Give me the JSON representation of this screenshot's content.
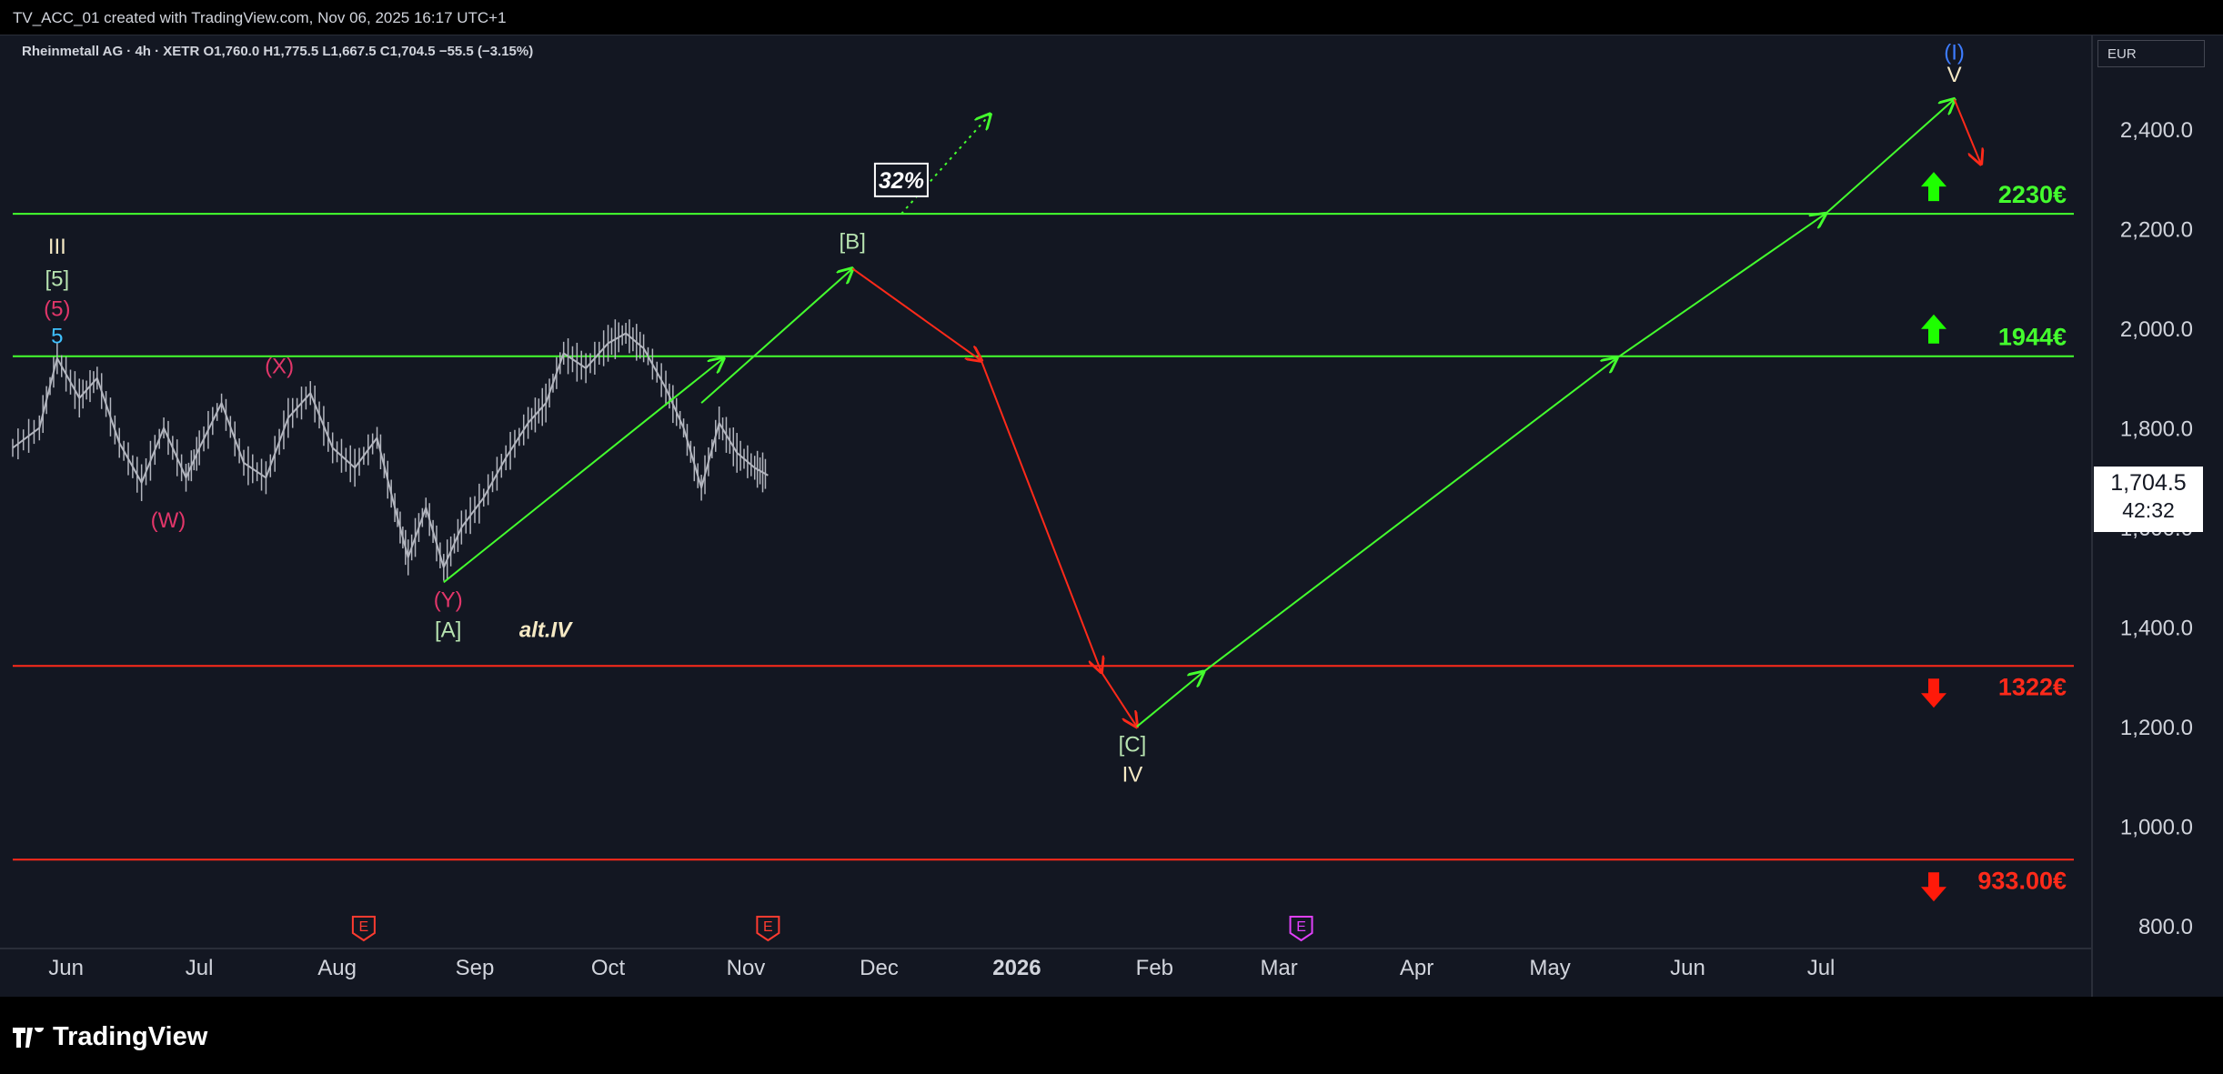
{
  "header": {
    "watermark": "TV_ACC_01 created with TradingView.com, Nov 06, 2025 16:17 UTC+1"
  },
  "symbol_bar": {
    "text": "Rheinmetall AG · 4h · XETR  O1,760.0  H1,775.5  L1,667.5  C1,704.5  −55.5 (−3.15%)"
  },
  "currency": "EUR",
  "last_price": {
    "price": "1,704.5",
    "countdown": "42:32"
  },
  "footer": {
    "brand": "TradingView"
  },
  "colors": {
    "background": "#131722",
    "green": "#44ff2e",
    "red": "#ff2a1a",
    "candle": "#b2b5be"
  },
  "chart_data": {
    "type": "line",
    "title": "",
    "y_ticks": [
      800,
      1000,
      1200,
      1400,
      1600,
      1800,
      2000,
      2200,
      2400
    ],
    "y_tick_labels": [
      "800.0",
      "1,000.0",
      "1,200.0",
      "1,400.0",
      "1,600.0",
      "1,800.0",
      "2,000.0",
      "2,200.0",
      "2,400.0"
    ],
    "x_ticks": [
      "Jun",
      "Jul",
      "Aug",
      "Sep",
      "Oct",
      "Nov",
      "Dec",
      "2026",
      "Feb",
      "Mar",
      "Apr",
      "May",
      "Jun",
      "Jul"
    ],
    "ylim": [
      760,
      2590
    ],
    "price_path": [
      {
        "d": "2025-05-20",
        "v": 1760
      },
      {
        "d": "2025-05-26",
        "v": 1800
      },
      {
        "d": "2025-05-30",
        "v": 1940
      },
      {
        "d": "2025-06-04",
        "v": 1860
      },
      {
        "d": "2025-06-08",
        "v": 1900
      },
      {
        "d": "2025-06-13",
        "v": 1770
      },
      {
        "d": "2025-06-18",
        "v": 1690
      },
      {
        "d": "2025-06-23",
        "v": 1800
      },
      {
        "d": "2025-06-28",
        "v": 1700
      },
      {
        "d": "2025-07-01",
        "v": 1760
      },
      {
        "d": "2025-07-06",
        "v": 1850
      },
      {
        "d": "2025-07-11",
        "v": 1730
      },
      {
        "d": "2025-07-16",
        "v": 1700
      },
      {
        "d": "2025-07-21",
        "v": 1820
      },
      {
        "d": "2025-07-26",
        "v": 1870
      },
      {
        "d": "2025-07-31",
        "v": 1760
      },
      {
        "d": "2025-08-05",
        "v": 1720
      },
      {
        "d": "2025-08-10",
        "v": 1780
      },
      {
        "d": "2025-08-14",
        "v": 1640
      },
      {
        "d": "2025-08-17",
        "v": 1540
      },
      {
        "d": "2025-08-21",
        "v": 1640
      },
      {
        "d": "2025-08-25",
        "v": 1520
      },
      {
        "d": "2025-08-29",
        "v": 1600
      },
      {
        "d": "2025-09-03",
        "v": 1660
      },
      {
        "d": "2025-09-08",
        "v": 1740
      },
      {
        "d": "2025-09-13",
        "v": 1810
      },
      {
        "d": "2025-09-17",
        "v": 1850
      },
      {
        "d": "2025-09-21",
        "v": 1950
      },
      {
        "d": "2025-09-26",
        "v": 1920
      },
      {
        "d": "2025-10-01",
        "v": 1970
      },
      {
        "d": "2025-10-05",
        "v": 1990
      },
      {
        "d": "2025-10-09",
        "v": 1960
      },
      {
        "d": "2025-10-14",
        "v": 1880
      },
      {
        "d": "2025-10-18",
        "v": 1800
      },
      {
        "d": "2025-10-22",
        "v": 1680
      },
      {
        "d": "2025-10-26",
        "v": 1810
      },
      {
        "d": "2025-10-30",
        "v": 1750
      },
      {
        "d": "2025-11-03",
        "v": 1720
      },
      {
        "d": "2025-11-06",
        "v": 1704.5
      }
    ],
    "levels": [
      {
        "value": 2230,
        "label": "2230€",
        "color": "#44ff2e",
        "arrow": "up"
      },
      {
        "value": 1944,
        "label": "1944€",
        "color": "#44ff2e",
        "arrow": "up"
      },
      {
        "value": 1322,
        "label": "1322€",
        "color": "#ff2a1a",
        "arrow": "down"
      },
      {
        "value": 933,
        "label": "933.00€",
        "color": "#ff2a1a",
        "arrow": "down"
      }
    ],
    "projection_arrows": [
      {
        "from": {
          "d": "2025-08-25",
          "v": 1490
        },
        "to": {
          "d": "2025-10-27",
          "v": 1940
        },
        "color": "#44ff2e",
        "dashed": false
      },
      {
        "from": {
          "d": "2025-10-22",
          "v": 1850
        },
        "to": {
          "d": "2025-11-25",
          "v": 2120
        },
        "color": "#44ff2e",
        "dashed": false
      },
      {
        "from": {
          "d": "2025-11-25",
          "v": 2120
        },
        "to": {
          "d": "2025-12-24",
          "v": 1935
        },
        "color": "#ff2a1a",
        "dashed": false
      },
      {
        "from": {
          "d": "2025-12-24",
          "v": 1935
        },
        "to": {
          "d": "2026-01-20",
          "v": 1310
        },
        "color": "#ff2a1a",
        "dashed": false
      },
      {
        "from": {
          "d": "2026-01-20",
          "v": 1310
        },
        "to": {
          "d": "2026-01-28",
          "v": 1200
        },
        "color": "#ff2a1a",
        "dashed": false
      },
      {
        "from": {
          "d": "2026-01-28",
          "v": 1200
        },
        "to": {
          "d": "2026-02-12",
          "v": 1310
        },
        "color": "#44ff2e",
        "dashed": false
      },
      {
        "from": {
          "d": "2026-02-12",
          "v": 1310
        },
        "to": {
          "d": "2026-05-16",
          "v": 1940
        },
        "color": "#44ff2e",
        "dashed": false
      },
      {
        "from": {
          "d": "2026-05-16",
          "v": 1940
        },
        "to": {
          "d": "2026-07-02",
          "v": 2230
        },
        "color": "#44ff2e",
        "dashed": false
      },
      {
        "from": {
          "d": "2026-07-02",
          "v": 2230
        },
        "to": {
          "d": "2026-07-31",
          "v": 2460
        },
        "color": "#44ff2e",
        "dashed": false
      },
      {
        "from": {
          "d": "2026-07-31",
          "v": 2460
        },
        "to": {
          "d": "2026-08-06",
          "v": 2330
        },
        "color": "#ff2a1a",
        "dashed": false
      },
      {
        "from": {
          "d": "2025-12-06",
          "v": 2230
        },
        "to": {
          "d": "2025-12-26",
          "v": 2430
        },
        "color": "#44ff2e",
        "dashed": true
      }
    ],
    "annotations": [
      {
        "text": "III",
        "d": "2025-05-30",
        "v": 2150,
        "color": "#f5e9c4",
        "size": 24
      },
      {
        "text": "[5]",
        "d": "2025-05-30",
        "v": 2085,
        "color": "#b7e3b0",
        "size": 24
      },
      {
        "text": "(5)",
        "d": "2025-05-30",
        "v": 2025,
        "color": "#e2366a",
        "size": 24
      },
      {
        "text": "5",
        "d": "2025-05-30",
        "v": 1970,
        "color": "#3fc1ff",
        "size": 24
      },
      {
        "text": "(X)",
        "d": "2025-07-19",
        "v": 1910,
        "color": "#e2366a",
        "size": 24
      },
      {
        "text": "(W)",
        "d": "2025-06-24",
        "v": 1600,
        "color": "#e2366a",
        "size": 24
      },
      {
        "text": "(Y)",
        "d": "2025-08-26",
        "v": 1440,
        "color": "#e2366a",
        "size": 24
      },
      {
        "text": "[A]",
        "d": "2025-08-26",
        "v": 1380,
        "color": "#b7e3b0",
        "size": 24
      },
      {
        "text": "alt.IV",
        "d": "2025-09-11",
        "v": 1380,
        "color": "#f5e9c4",
        "size": 24,
        "italic": true
      },
      {
        "text": "[B]",
        "d": "2025-11-25",
        "v": 2160,
        "color": "#b7e3b0",
        "size": 24
      },
      {
        "text": "[C]",
        "d": "2026-01-27",
        "v": 1150,
        "color": "#b7e3b0",
        "size": 24
      },
      {
        "text": "IV",
        "d": "2026-01-27",
        "v": 1090,
        "color": "#f5e9c4",
        "size": 24
      },
      {
        "text": "(I)",
        "d": "2026-07-31",
        "v": 2540,
        "color": "#3d7cff",
        "size": 24
      },
      {
        "text": "V",
        "d": "2026-07-31",
        "v": 2495,
        "color": "#f5e9c4",
        "size": 24
      }
    ],
    "note_box": {
      "text": "32%",
      "d": "2025-12-06",
      "v": 2298
    },
    "events": [
      {
        "d": "2025-08-07",
        "label": "E",
        "color": "#ff3b30"
      },
      {
        "d": "2025-11-06",
        "label": "E",
        "color": "#ff3b30"
      },
      {
        "d": "2026-03-06",
        "label": "E",
        "color": "#e040fb"
      }
    ]
  }
}
